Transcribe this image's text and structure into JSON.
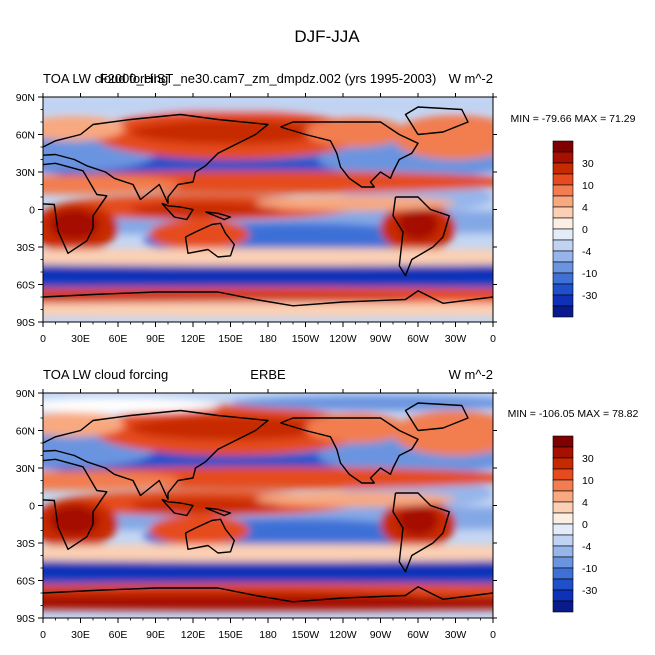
{
  "figure": {
    "title": "DJF-JJA"
  },
  "lon_ticks": [
    "0",
    "30E",
    "60E",
    "90E",
    "120E",
    "150E",
    "180",
    "150W",
    "120W",
    "90W",
    "60W",
    "30W",
    "0"
  ],
  "lat_ticks": [
    "90N",
    "60N",
    "30N",
    "0",
    "30S",
    "60S",
    "90S"
  ],
  "panels": [
    {
      "left_title": "TOA LW cloud forcing",
      "center_title": "F2000_HIST_ne30.cam7_zm_dmpdz.002 (yrs 1995-2003)",
      "right_title": "W m^-2",
      "stats": "MIN = -79.66 MAX =  71.29"
    },
    {
      "left_title": "TOA LW cloud forcing",
      "center_title": "ERBE",
      "right_title": "W m^-2",
      "stats": "MIN = -106.05 MAX =  78.82"
    }
  ],
  "colorbar": {
    "labels": [
      "30",
      "10",
      "4",
      "0",
      "-4",
      "-10",
      "-30"
    ],
    "colors": [
      "#7f0000",
      "#a51000",
      "#c82a00",
      "#e54b1f",
      "#f27d50",
      "#f8a980",
      "#fcd0b4",
      "#fdeee4",
      "#e3ecf8",
      "#c0d3f2",
      "#96b5ea",
      "#6a94e0",
      "#3e70d6",
      "#1f4fcb",
      "#0f30b8",
      "#081a8c"
    ]
  },
  "chart_data": {
    "type": "heatmap",
    "title": "DJF-JJA",
    "x_ticks": [
      "0",
      "30E",
      "60E",
      "90E",
      "120E",
      "150E",
      "180",
      "150W",
      "120W",
      "90W",
      "60W",
      "30W",
      "0"
    ],
    "y_ticks": [
      "90N",
      "60N",
      "30N",
      "0",
      "30S",
      "60S",
      "90S"
    ],
    "colorbar_levels": [
      -30,
      -10,
      -4,
      0,
      4,
      10,
      30
    ],
    "panels": [
      {
        "name": "F2000_HIST_ne30.cam7_zm_dmpdz.002 (yrs 1995-2003)",
        "min": -79.66,
        "max": 71.29
      },
      {
        "name": "ERBE",
        "min": -106.05,
        "max": 78.82
      }
    ]
  }
}
